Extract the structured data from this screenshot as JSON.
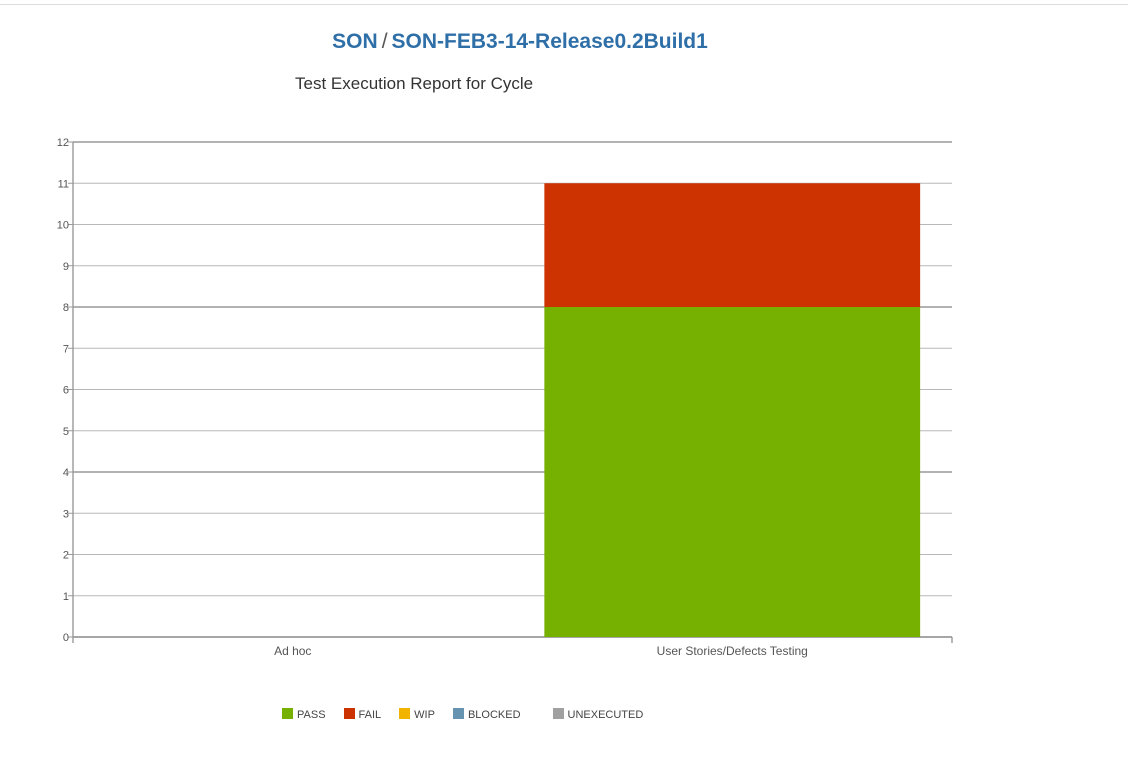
{
  "header": {
    "project": "SON",
    "separator": "/",
    "cycle": "SON-FEB3-14-Release0.2Build1"
  },
  "chart_data": {
    "type": "bar",
    "stacked": true,
    "title": "Test Execution Report for Cycle",
    "xlabel": "",
    "ylabel": "",
    "ylim": [
      0,
      12
    ],
    "yticks": [
      0,
      1,
      2,
      3,
      4,
      5,
      6,
      7,
      8,
      9,
      10,
      11,
      12
    ],
    "categories": [
      "Ad hoc",
      "User Stories/Defects Testing"
    ],
    "series": [
      {
        "name": "PASS",
        "color": "#76b000",
        "values": [
          0,
          8
        ]
      },
      {
        "name": "FAIL",
        "color": "#cc3300",
        "values": [
          0,
          3
        ]
      },
      {
        "name": "WIP",
        "color": "#f2b400",
        "values": [
          0,
          0
        ]
      },
      {
        "name": "BLOCKED",
        "color": "#6693b0",
        "values": [
          0,
          0
        ]
      },
      {
        "name": "UNEXECUTED",
        "color": "#a0a0a0",
        "values": [
          0,
          0
        ]
      }
    ],
    "grid": true,
    "legend_position": "bottom"
  }
}
